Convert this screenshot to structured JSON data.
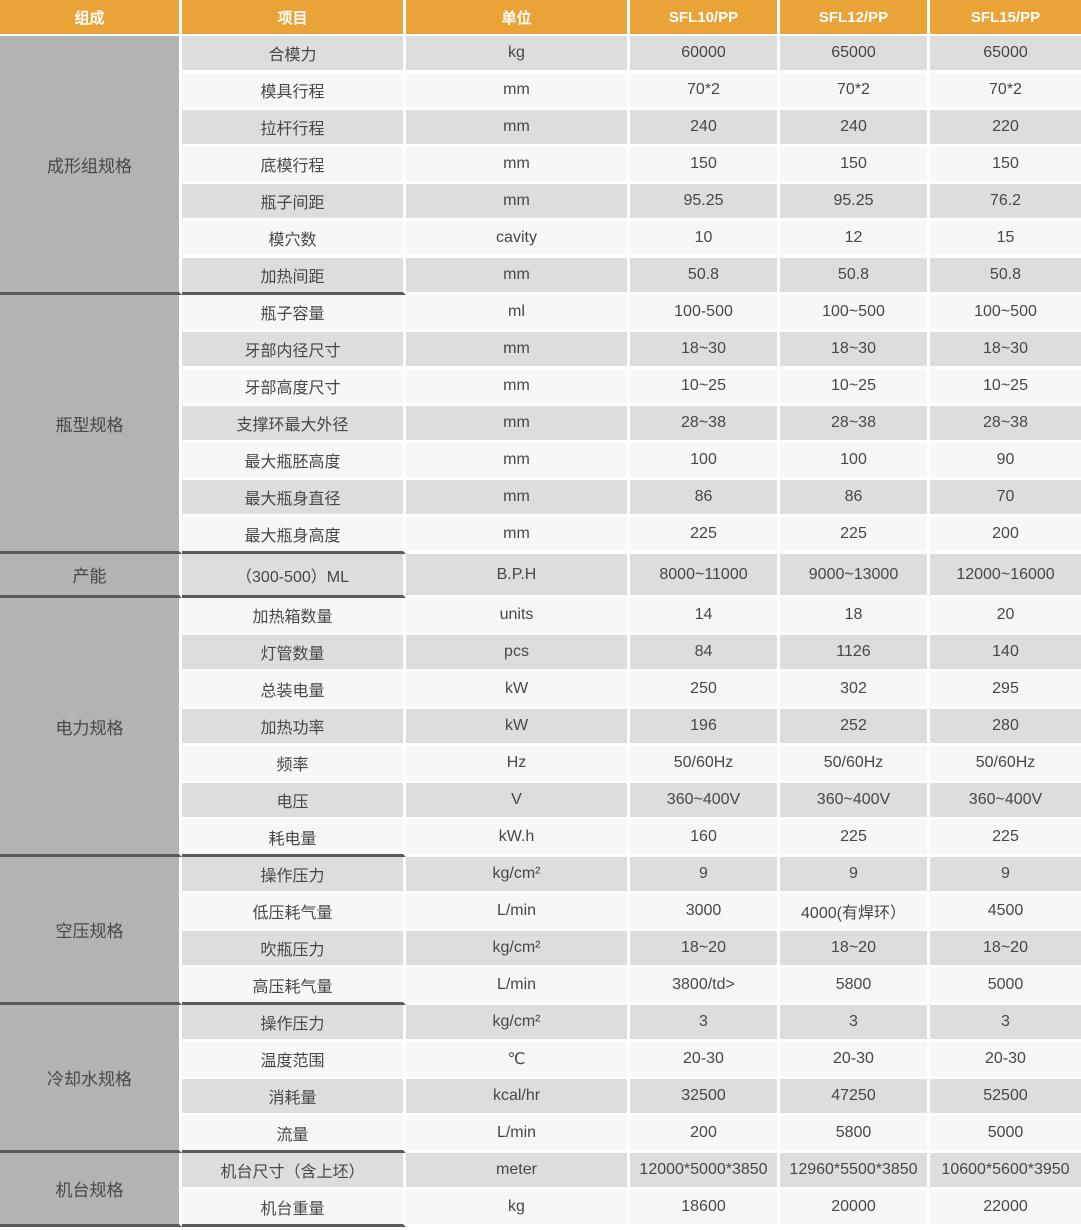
{
  "colors": {
    "header_bg": "#EAA336",
    "header_text": "#FFFFFF",
    "group_column_bg": "#B3B3B3",
    "row_stripe_gray": "#DDDDDD",
    "row_stripe_light": "#F7F7F7",
    "group_separator": "#5A5A5C",
    "cell_text": "#474747"
  },
  "header": {
    "columns": [
      "组成",
      "项目",
      "单位",
      "SFL10/PP",
      "SFL12/PP",
      "SFL15/PP"
    ]
  },
  "groups": [
    {
      "name": "成形组规格",
      "rows": [
        {
          "item": "合模力",
          "unit": "kg",
          "values": [
            "60000",
            "65000",
            "65000"
          ]
        },
        {
          "item": "模具行程",
          "unit": "mm",
          "values": [
            "70*2",
            "70*2",
            "70*2"
          ]
        },
        {
          "item": "拉杆行程",
          "unit": "mm",
          "values": [
            "240",
            "240",
            "220"
          ]
        },
        {
          "item": "底模行程",
          "unit": "mm",
          "values": [
            "150",
            "150",
            "150"
          ]
        },
        {
          "item": "瓶子间距",
          "unit": "mm",
          "values": [
            "95.25",
            "95.25",
            "76.2"
          ]
        },
        {
          "item": "模穴数",
          "unit": "cavity",
          "values": [
            "10",
            "12",
            "15"
          ]
        },
        {
          "item": "加热间距",
          "unit": "mm",
          "values": [
            "50.8",
            "50.8",
            "50.8"
          ]
        }
      ]
    },
    {
      "name": "瓶型规格",
      "rows": [
        {
          "item": "瓶子容量",
          "unit": "ml",
          "values": [
            "100-500",
            "100~500",
            "100~500"
          ]
        },
        {
          "item": "牙部内径尺寸",
          "unit": "mm",
          "values": [
            "18~30",
            "18~30",
            "18~30"
          ]
        },
        {
          "item": "牙部高度尺寸",
          "unit": "mm",
          "values": [
            "10~25",
            "10~25",
            "10~25"
          ]
        },
        {
          "item": "支撑环最大外径",
          "unit": "mm",
          "values": [
            "28~38",
            "28~38",
            "28~38"
          ]
        },
        {
          "item": "最大瓶胚高度",
          "unit": "mm",
          "values": [
            "100",
            "100",
            "90"
          ]
        },
        {
          "item": "最大瓶身直径",
          "unit": "mm",
          "values": [
            "86",
            "86",
            "70"
          ]
        },
        {
          "item": "最大瓶身高度",
          "unit": "mm",
          "values": [
            "225",
            "225",
            "200"
          ]
        }
      ]
    },
    {
      "name": "产能",
      "rows": [
        {
          "item": "（300-500）ML",
          "unit": "B.P.H",
          "values": [
            "8000~11000",
            "9000~13000",
            "12000~16000"
          ]
        }
      ]
    },
    {
      "name": "电力规格",
      "rows": [
        {
          "item": "加热箱数量",
          "unit": "units",
          "values": [
            "14",
            "18",
            "20"
          ]
        },
        {
          "item": "灯管数量",
          "unit": "pcs",
          "values": [
            "84",
            "1126",
            "140"
          ]
        },
        {
          "item": "总装电量",
          "unit": "kW",
          "values": [
            "250",
            "302",
            "295"
          ]
        },
        {
          "item": "加热功率",
          "unit": "kW",
          "values": [
            "196",
            "252",
            "280"
          ]
        },
        {
          "item": "频率",
          "unit": "Hz",
          "values": [
            "50/60Hz",
            "50/60Hz",
            "50/60Hz"
          ]
        },
        {
          "item": "电压",
          "unit": "V",
          "values": [
            "360~400V",
            "360~400V",
            "360~400V"
          ]
        },
        {
          "item": "耗电量",
          "unit": "kW.h",
          "values": [
            "160",
            "225",
            "225"
          ]
        }
      ]
    },
    {
      "name": "空压规格",
      "rows": [
        {
          "item": "操作压力",
          "unit": "kg/cm²",
          "values": [
            "9",
            "9",
            "9"
          ]
        },
        {
          "item": "低压耗气量",
          "unit": "L/min",
          "values": [
            "3000",
            "4000(有焊环）",
            "4500"
          ]
        },
        {
          "item": "吹瓶压力",
          "unit": "kg/cm²",
          "values": [
            "18~20",
            "18~20",
            "18~20"
          ]
        },
        {
          "item": "高压耗气量",
          "unit": "L/min",
          "values": [
            "3800/td>",
            "5800",
            "5000"
          ]
        }
      ]
    },
    {
      "name": "冷却水规格",
      "rows": [
        {
          "item": "操作压力",
          "unit": "kg/cm²",
          "values": [
            "3",
            "3",
            "3"
          ]
        },
        {
          "item": "温度范围",
          "unit": "℃",
          "values": [
            "20-30",
            "20-30",
            "20-30"
          ]
        },
        {
          "item": "消耗量",
          "unit": "kcal/hr",
          "values": [
            "32500",
            "47250",
            "52500"
          ]
        },
        {
          "item": "流量",
          "unit": "L/min",
          "values": [
            "200",
            "5800",
            "5000"
          ]
        }
      ]
    },
    {
      "name": "机台规格",
      "rows": [
        {
          "item": "机台尺寸（含上坯）",
          "unit": "meter",
          "values": [
            "12000*5000*3850",
            "12960*5500*3850",
            "10600*5600*3950"
          ]
        },
        {
          "item": "机台重量",
          "unit": "kg",
          "values": [
            "18600",
            "20000",
            "22000"
          ]
        }
      ]
    }
  ]
}
